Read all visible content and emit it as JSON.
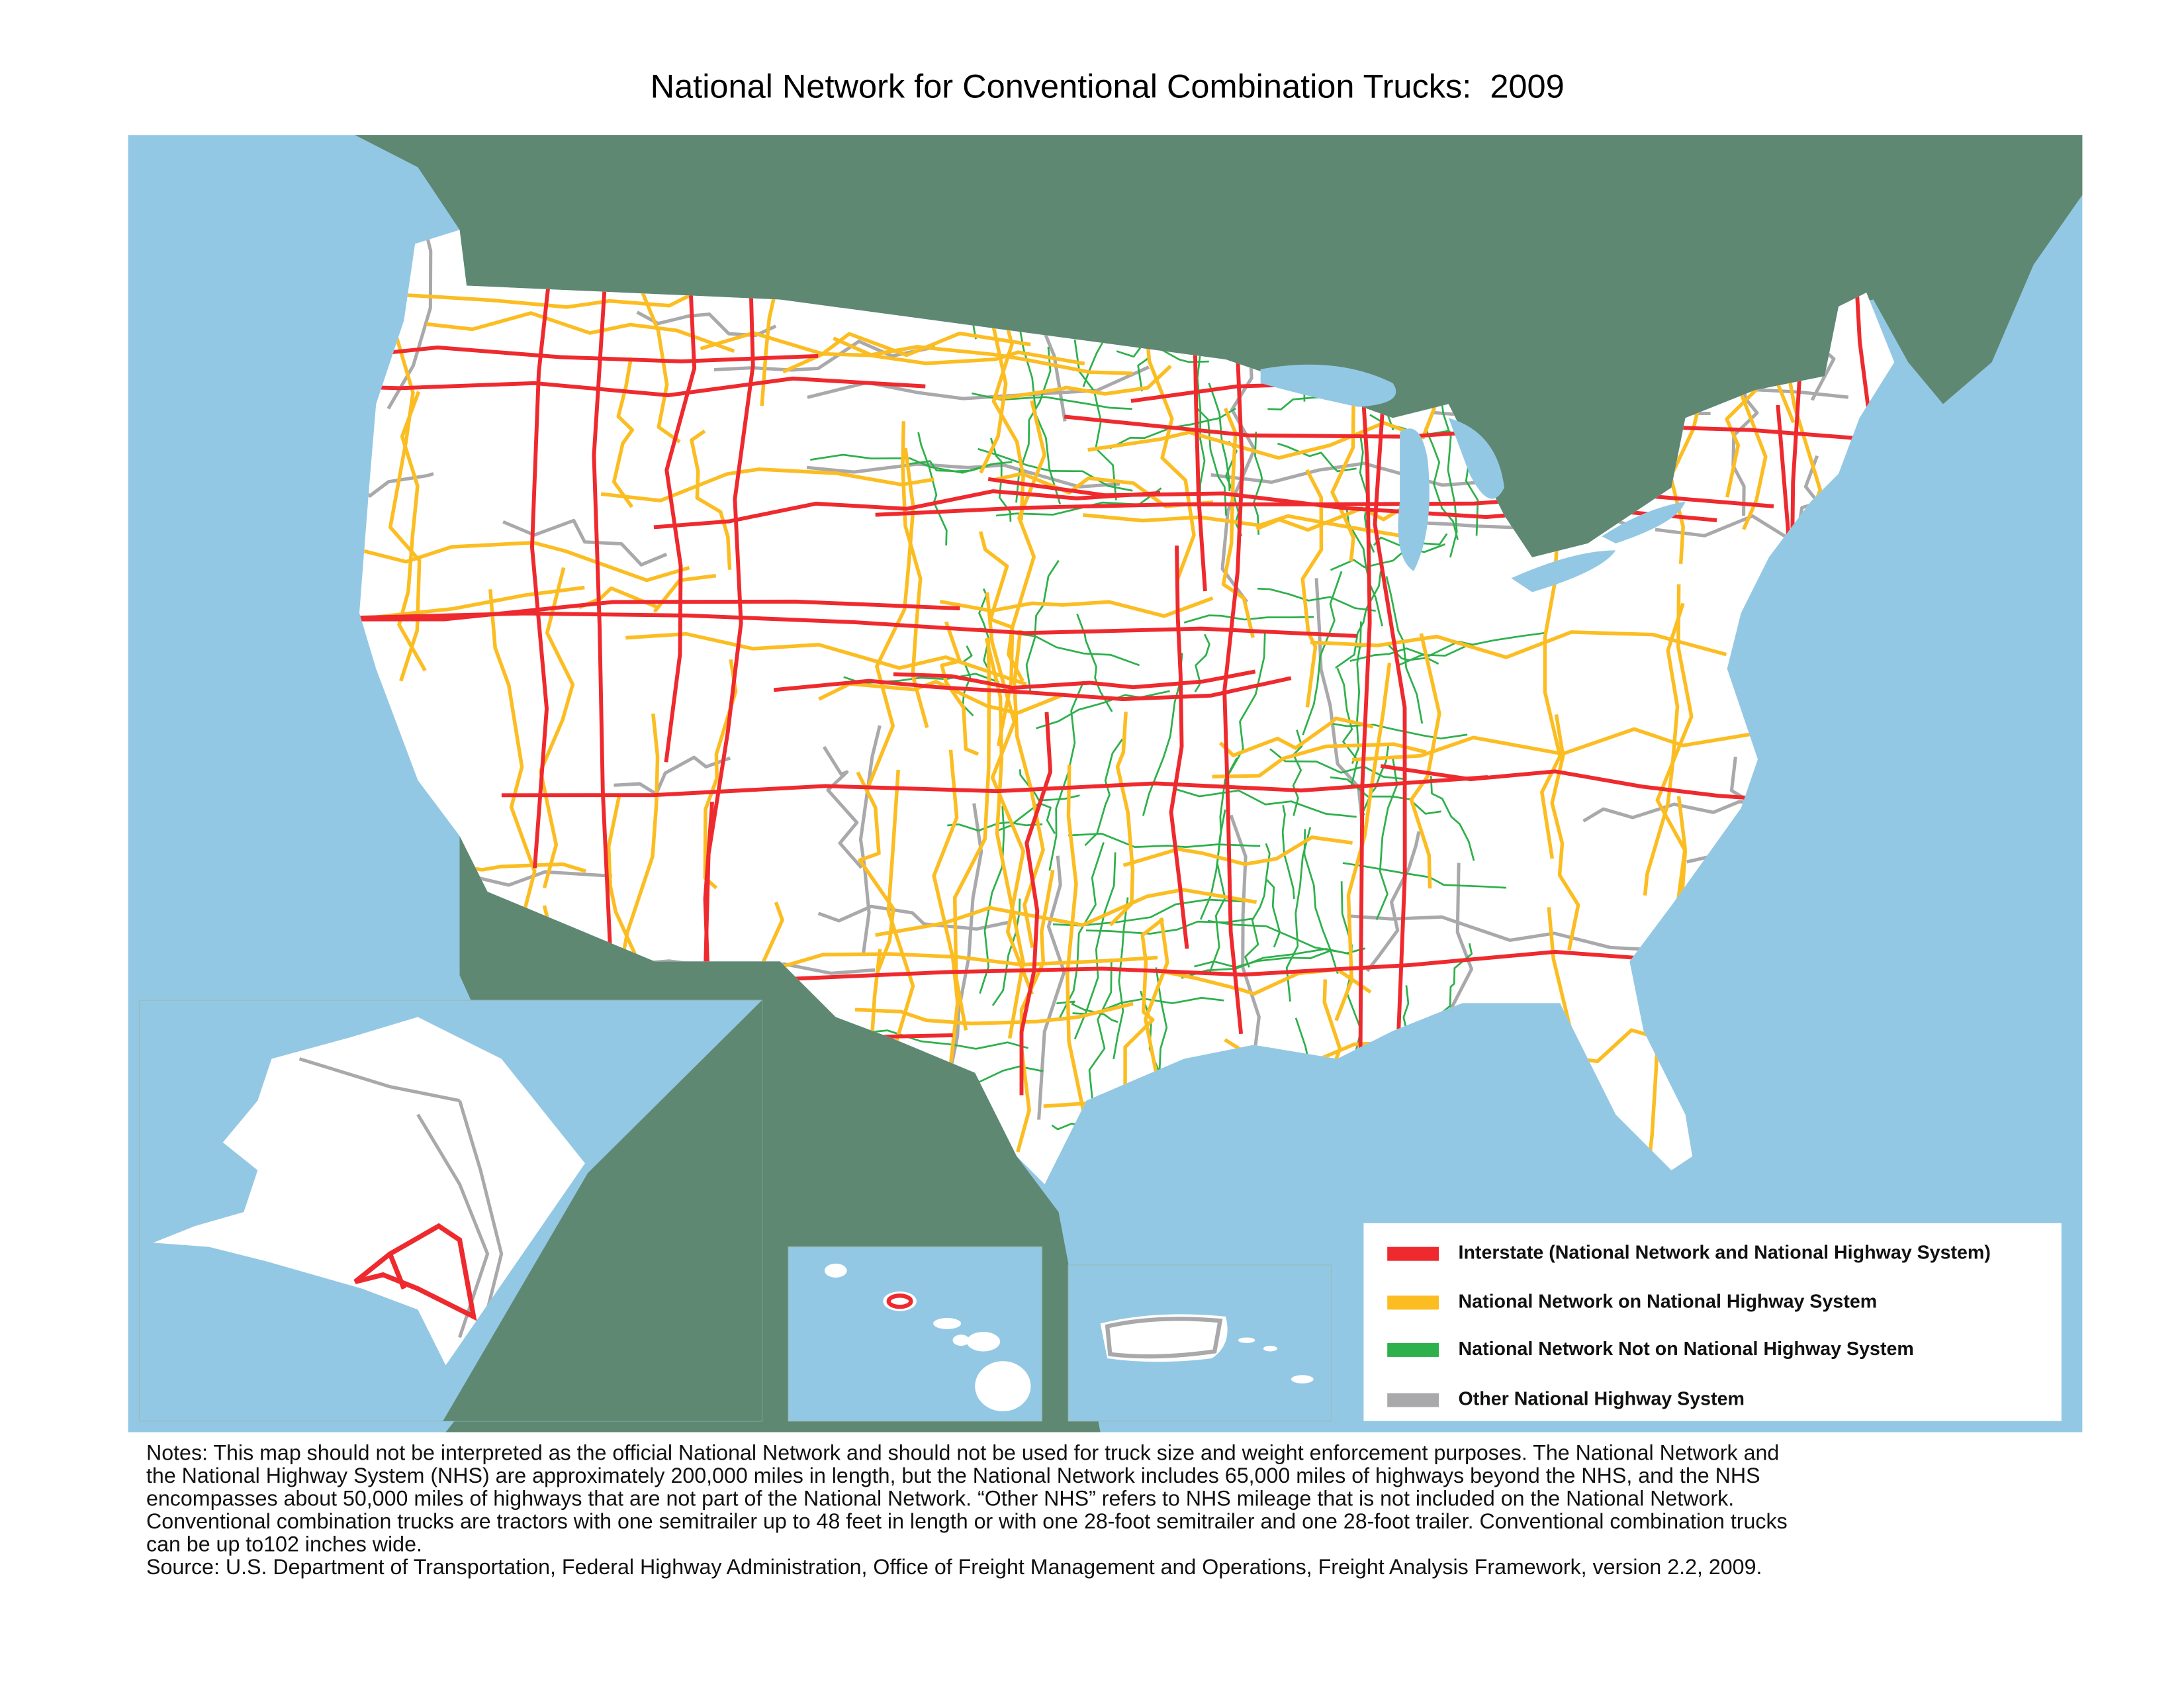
{
  "title": "National Network for Conventional Combination Trucks:  2009",
  "legend": [
    {
      "label": "Interstate (National Network and National Highway System)",
      "color": "#ee2a2e"
    },
    {
      "label": "National Network on National Highway System",
      "color": "#fbbd22"
    },
    {
      "label": "National Network Not on National Highway System",
      "color": "#2eb04b"
    },
    {
      "label": "Other National Highway System",
      "color": "#a9a9ab"
    }
  ],
  "notes": [
    "Notes:  This map should not be interpreted as the official National Network and should not be used for truck size and weight enforcement purposes.  The National Network and",
    "the National Highway System (NHS) are approximately 200,000 miles in length, but the National Network includes 65,000 miles of highways beyond the NHS, and the NHS",
    "encompasses about 50,000 miles of highways that are not part of the National Network.  “Other NHS” refers to NHS mileage that is not included on the National Network.",
    "Conventional combination trucks are tractors with one semitrailer up to 48 feet in length or with one 28-foot semitrailer and one 28-foot trailer.  Conventional combination trucks",
    "can be up to102 inches wide.",
    "Source:  U.S. Department of Transportation, Federal Highway Administration, Office of Freight Management and Operations, Freight Analysis Framework, version 2.2, 2009."
  ]
}
